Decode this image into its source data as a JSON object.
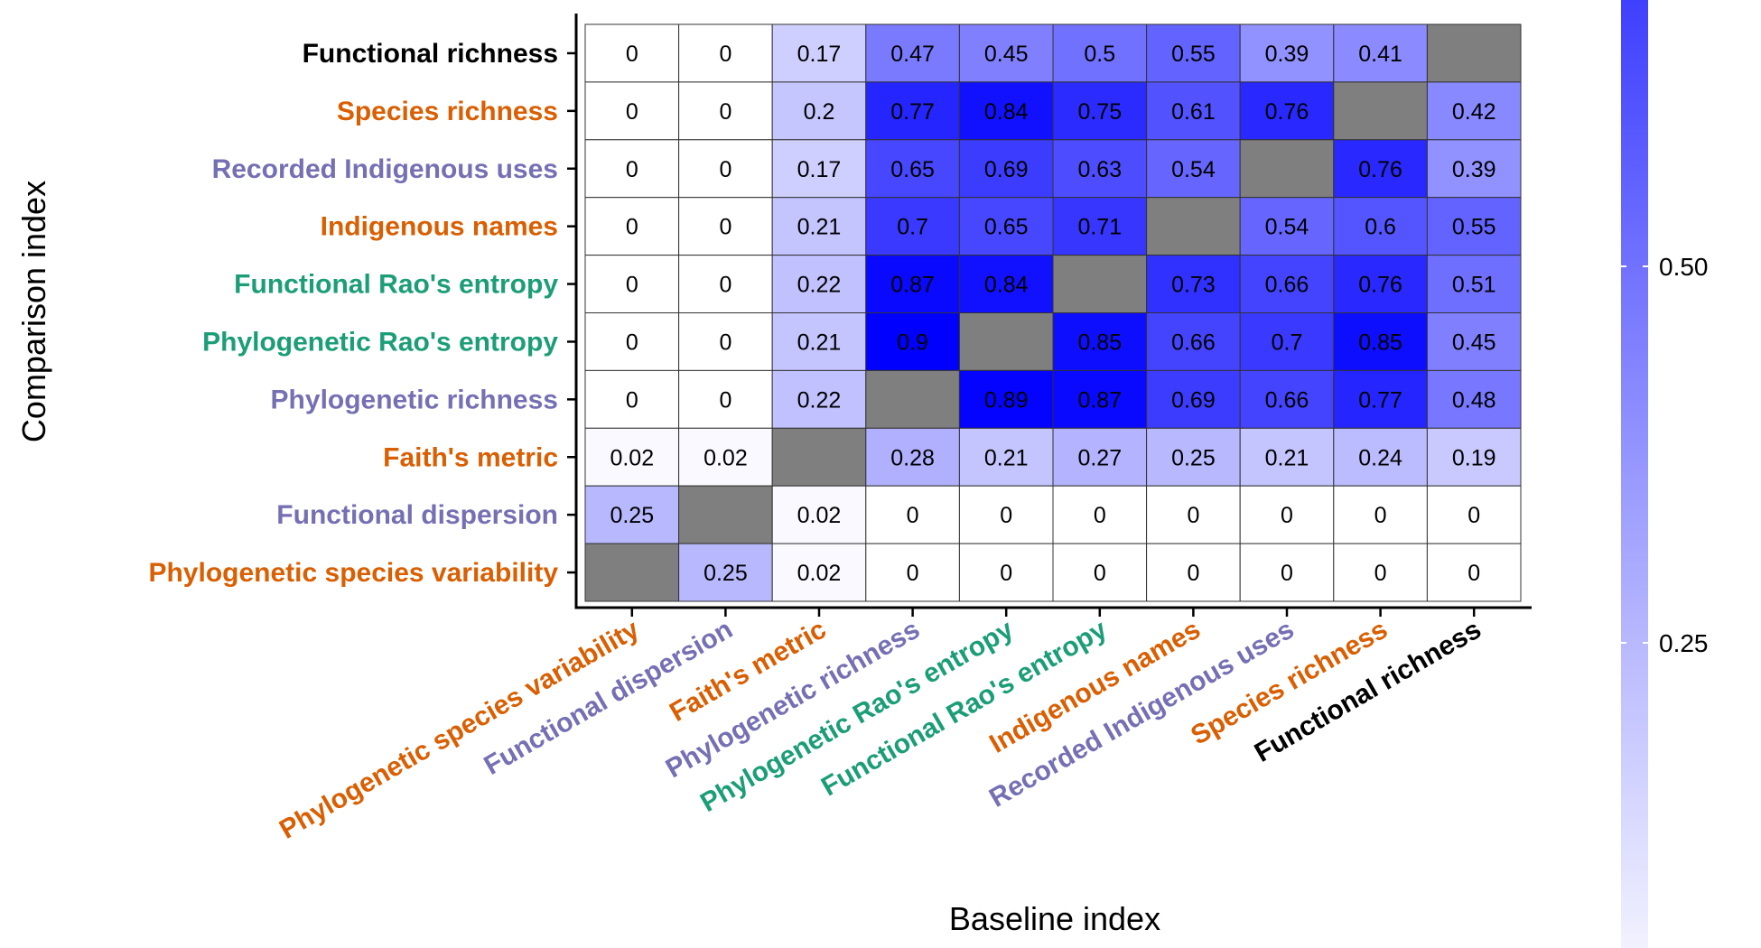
{
  "chart_data": {
    "type": "heatmap",
    "xlabel": "Baseline index",
    "ylabel": "Comparison index",
    "x_categories": [
      {
        "label": "Phylogenetic species variability",
        "color": "#D95F02"
      },
      {
        "label": "Functional dispersion",
        "color": "#7570B3"
      },
      {
        "label": "Faith's metric",
        "color": "#D95F02"
      },
      {
        "label": "Phylogenetic richness",
        "color": "#7570B3"
      },
      {
        "label": "Phylogenetic Rao's entropy",
        "color": "#1B9E77"
      },
      {
        "label": "Functional Rao's entropy",
        "color": "#1B9E77"
      },
      {
        "label": "Indigenous names",
        "color": "#D95F02"
      },
      {
        "label": "Recorded Indigenous uses",
        "color": "#7570B3"
      },
      {
        "label": "Species richness",
        "color": "#D95F02"
      },
      {
        "label": "Functional richness",
        "color": "#000000"
      }
    ],
    "y_categories": [
      {
        "label": "Functional richness",
        "color": "#000000"
      },
      {
        "label": "Species richness",
        "color": "#D95F02"
      },
      {
        "label": "Recorded Indigenous uses",
        "color": "#7570B3"
      },
      {
        "label": "Indigenous names",
        "color": "#D95F02"
      },
      {
        "label": "Functional Rao's entropy",
        "color": "#1B9E77"
      },
      {
        "label": "Phylogenetic Rao's entropy",
        "color": "#1B9E77"
      },
      {
        "label": "Phylogenetic richness",
        "color": "#7570B3"
      },
      {
        "label": "Faith's metric",
        "color": "#D95F02"
      },
      {
        "label": "Functional dispersion",
        "color": "#7570B3"
      },
      {
        "label": "Phylogenetic species variability",
        "color": "#D95F02"
      }
    ],
    "values": [
      [
        0,
        0,
        0.17,
        0.47,
        0.45,
        0.5,
        0.55,
        0.39,
        0.41,
        null
      ],
      [
        0,
        0,
        0.2,
        0.77,
        0.84,
        0.75,
        0.61,
        0.76,
        null,
        0.42
      ],
      [
        0,
        0,
        0.17,
        0.65,
        0.69,
        0.63,
        0.54,
        null,
        0.76,
        0.39
      ],
      [
        0,
        0,
        0.21,
        0.7,
        0.65,
        0.71,
        null,
        0.54,
        0.6,
        0.55
      ],
      [
        0,
        0,
        0.22,
        0.87,
        0.84,
        null,
        0.73,
        0.66,
        0.76,
        0.51
      ],
      [
        0,
        0,
        0.21,
        0.9,
        null,
        0.85,
        0.66,
        0.7,
        0.85,
        0.45
      ],
      [
        0,
        0,
        0.22,
        null,
        0.89,
        0.87,
        0.69,
        0.66,
        0.77,
        0.48
      ],
      [
        0.02,
        0.02,
        null,
        0.28,
        0.21,
        0.27,
        0.25,
        0.21,
        0.24,
        0.19
      ],
      [
        0.25,
        null,
        0.02,
        0,
        0,
        0,
        0,
        0,
        0,
        0
      ],
      [
        null,
        0.25,
        0.02,
        0,
        0,
        0,
        0,
        0,
        0,
        0
      ]
    ],
    "color_scale": {
      "low": "#FFFFFF",
      "high": "#0000FF",
      "na": "#7F7F7F",
      "min": 0,
      "max": 0.9
    },
    "legend": {
      "ticks": [
        0.25,
        0.5
      ],
      "tick_labels": [
        "0.25",
        "0.50"
      ],
      "placement": "right"
    }
  }
}
